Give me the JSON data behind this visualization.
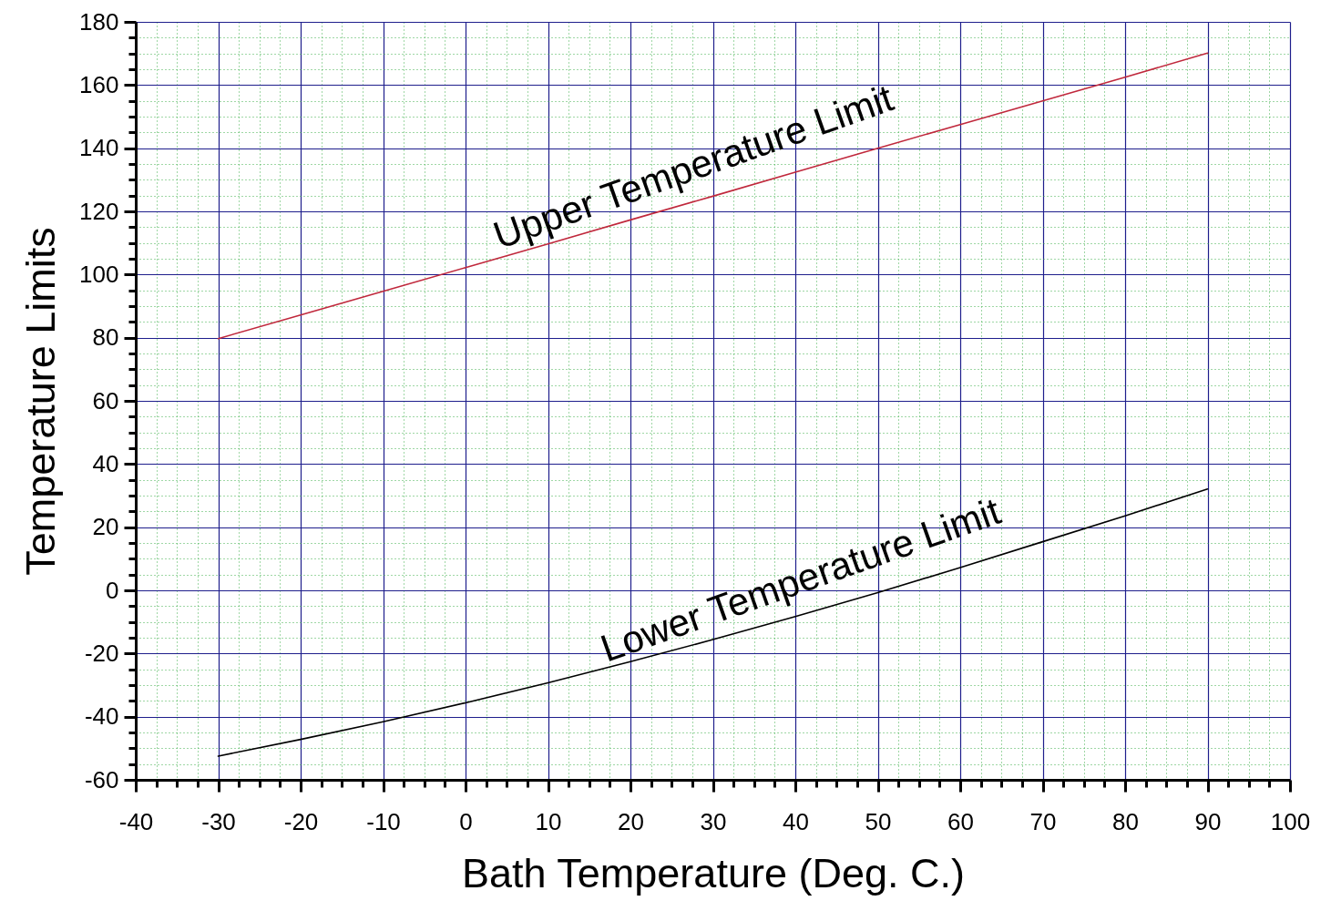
{
  "chart_data": {
    "type": "line",
    "xlabel": "Bath Temperature (Deg. C.)",
    "ylabel": "Temperature Limits",
    "x": [
      -30,
      -20,
      -10,
      0,
      10,
      20,
      30,
      40,
      50,
      60,
      70,
      80,
      90
    ],
    "series": [
      {
        "color": "#c0283c",
        "values": [
          79.7,
          87.2,
          94.7,
          102.2,
          109.7,
          117.3,
          124.8,
          132.4,
          140,
          147.5,
          155,
          162.5,
          170.1
        ]
      },
      {
        "color": "#000000",
        "values": [
          -52.5,
          -47.2,
          -41.6,
          -35.6,
          -29.3,
          -22.6,
          -15.6,
          -8.3,
          -0.7,
          7.2,
          15.4,
          23.6,
          32.1
        ]
      }
    ],
    "xlim": [
      -40,
      100
    ],
    "ylim": [
      -60,
      180
    ],
    "xticks": [
      -40,
      {
        "value": -37.5,
        "label": null
      },
      {
        "value": -35,
        "label": null
      },
      {
        "value": -32.5,
        "label": null
      },
      -30,
      {
        "value": -27.5,
        "label": null
      },
      {
        "value": -25,
        "label": null
      },
      {
        "value": -22.5,
        "label": null
      },
      -20,
      {
        "value": -17.5,
        "label": null
      },
      {
        "value": -15,
        "label": null
      },
      {
        "value": -12.5,
        "label": null
      },
      -10,
      {
        "value": -7.5,
        "label": null
      },
      {
        "value": -5,
        "label": null
      },
      {
        "value": -2.5,
        "label": null
      },
      0,
      {
        "value": 2.5,
        "label": null
      },
      {
        "value": 5,
        "label": null
      },
      {
        "value": 7.5,
        "label": null
      },
      10,
      {
        "value": 12.5,
        "label": null
      },
      {
        "value": 15,
        "label": null
      },
      {
        "value": 17.5,
        "label": null
      },
      20,
      {
        "value": 22.5,
        "label": null
      },
      {
        "value": 25,
        "label": null
      },
      {
        "value": 27.5,
        "label": null
      },
      30,
      {
        "value": 32.5,
        "label": null
      },
      {
        "value": 35,
        "label": null
      },
      {
        "value": 37.5,
        "label": null
      },
      40,
      {
        "value": 42.5,
        "label": null
      },
      {
        "value": 45,
        "label": null
      },
      {
        "value": 47.5,
        "label": null
      },
      50,
      {
        "value": 52.5,
        "label": null
      },
      {
        "value": 55,
        "label": null
      },
      {
        "value": 57.5,
        "label": null
      },
      60,
      {
        "value": 62.5,
        "label": null
      },
      {
        "value": 65,
        "label": null
      },
      {
        "value": 67.5,
        "label": null
      },
      70,
      {
        "value": 72.5,
        "label": null
      },
      {
        "value": 75,
        "label": null
      },
      {
        "value": 77.5,
        "label": null
      },
      80,
      {
        "value": 82.5,
        "label": null
      },
      {
        "value": 85,
        "label": null
      },
      {
        "value": 87.5,
        "label": null
      },
      90,
      {
        "value": 92.5,
        "label": null
      },
      {
        "value": 95,
        "label": null
      },
      {
        "value": 97.5,
        "label": null
      },
      100
    ],
    "yticks": [
      -60,
      {
        "value": -55,
        "label": null
      },
      {
        "value": -50,
        "label": null
      },
      {
        "value": -45,
        "label": null
      },
      -40,
      {
        "value": -35,
        "label": null
      },
      {
        "value": -30,
        "label": null
      },
      {
        "value": -25,
        "label": null
      },
      -20,
      {
        "value": -15,
        "label": null
      },
      {
        "value": -10,
        "label": null
      },
      {
        "value": -5,
        "label": null
      },
      0,
      {
        "value": 5,
        "label": null
      },
      {
        "value": 10,
        "label": null
      },
      {
        "value": 15,
        "label": null
      },
      20,
      {
        "value": 25,
        "label": null
      },
      {
        "value": 30,
        "label": null
      },
      {
        "value": 35,
        "label": null
      },
      40,
      {
        "value": 45,
        "label": null
      },
      {
        "value": 50,
        "label": null
      },
      {
        "value": 55,
        "label": null
      },
      60,
      {
        "value": 65,
        "label": null
      },
      {
        "value": 70,
        "label": null
      },
      {
        "value": 75,
        "label": null
      },
      80,
      {
        "value": 85,
        "label": null
      },
      {
        "value": 90,
        "label": null
      },
      {
        "value": 95,
        "label": null
      },
      100,
      {
        "value": 105,
        "label": null
      },
      {
        "value": 110,
        "label": null
      },
      {
        "value": 115,
        "label": null
      },
      120,
      {
        "value": 125,
        "label": null
      },
      {
        "value": 130,
        "label": null
      },
      {
        "value": 135,
        "label": null
      },
      140,
      {
        "value": 145,
        "label": null
      },
      {
        "value": 150,
        "label": null
      },
      {
        "value": 155,
        "label": null
      },
      160,
      {
        "value": 165,
        "label": null
      },
      {
        "value": 170,
        "label": null
      },
      {
        "value": 175,
        "label": null
      },
      180
    ],
    "grid": true,
    "annotations": [
      {
        "text": "Upper Temperature Limit",
        "x": 29,
        "y": 124
      },
      {
        "text": "Lower Temperature Limit",
        "x": 42,
        "y": -6.8
      }
    ]
  }
}
